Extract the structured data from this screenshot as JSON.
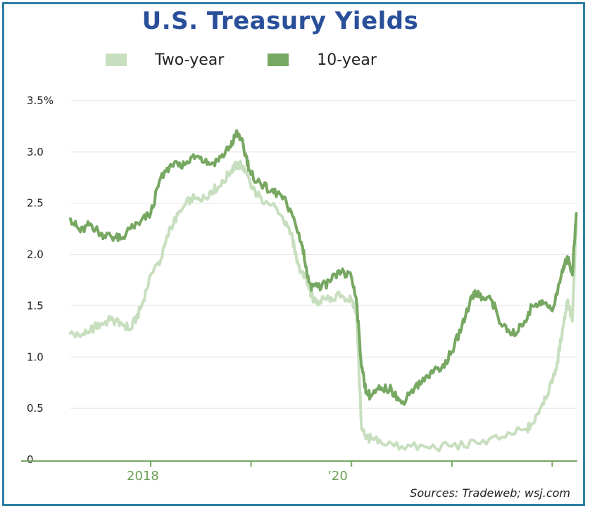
{
  "chart_data": {
    "type": "line",
    "title": "U.S. Treasury Yields",
    "source": "Sources: Tradeweb; wsj.com",
    "xlabel": "",
    "ylabel": "",
    "ylim": [
      0,
      3.5
    ],
    "y_ticks": [
      {
        "value": 0,
        "label": "0"
      },
      {
        "value": 0.5,
        "label": "0.5"
      },
      {
        "value": 1.0,
        "label": "1.0"
      },
      {
        "value": 1.5,
        "label": "1.5"
      },
      {
        "value": 2.0,
        "label": "2.0"
      },
      {
        "value": 2.5,
        "label": "2.5"
      },
      {
        "value": 3.0,
        "label": "3.0"
      },
      {
        "value": 3.5,
        "label": "3.5%"
      }
    ],
    "xlim": [
      2017.2,
      2022.25
    ],
    "x_ticks": [
      {
        "value": 2018.0,
        "label": ""
      },
      {
        "value": 2019.0,
        "label": ""
      },
      {
        "value": 2020.0,
        "label": ""
      },
      {
        "value": 2021.0,
        "label": ""
      },
      {
        "value": 2022.0,
        "label": ""
      }
    ],
    "x_tick_labels": [
      {
        "value": 2018.0,
        "label": "2018"
      },
      {
        "value": 2020.0,
        "label": "’20"
      }
    ],
    "grid": "horizontal",
    "legend": "top",
    "series": [
      {
        "name": "Two-year",
        "color": "#c8dfbf",
        "x": [
          2017.2,
          2017.3,
          2017.4,
          2017.5,
          2017.6,
          2017.7,
          2017.8,
          2017.9,
          2018.0,
          2018.1,
          2018.2,
          2018.3,
          2018.4,
          2018.5,
          2018.6,
          2018.7,
          2018.8,
          2018.85,
          2018.9,
          2018.95,
          2019.0,
          2019.1,
          2019.2,
          2019.3,
          2019.4,
          2019.45,
          2019.5,
          2019.55,
          2019.6,
          2019.65,
          2019.7,
          2019.8,
          2019.9,
          2020.0,
          2020.05,
          2020.1,
          2020.15,
          2020.2,
          2020.3,
          2020.5,
          2020.75,
          2021.0,
          2021.25,
          2021.5,
          2021.75,
          2021.8,
          2021.9,
          2022.0,
          2022.05,
          2022.1,
          2022.15,
          2022.2,
          2022.24
        ],
        "values": [
          1.23,
          1.2,
          1.27,
          1.32,
          1.36,
          1.34,
          1.27,
          1.47,
          1.8,
          1.95,
          2.27,
          2.42,
          2.55,
          2.52,
          2.62,
          2.67,
          2.82,
          2.87,
          2.87,
          2.8,
          2.65,
          2.55,
          2.48,
          2.38,
          2.2,
          1.98,
          1.83,
          1.78,
          1.6,
          1.52,
          1.55,
          1.58,
          1.6,
          1.55,
          1.45,
          0.3,
          0.22,
          0.2,
          0.16,
          0.13,
          0.12,
          0.13,
          0.16,
          0.22,
          0.3,
          0.35,
          0.55,
          0.75,
          0.95,
          1.25,
          1.55,
          1.35,
          2.3
        ]
      },
      {
        "name": "10-year",
        "color": "#77a862",
        "x": [
          2017.2,
          2017.3,
          2017.4,
          2017.5,
          2017.6,
          2017.7,
          2017.8,
          2017.9,
          2018.0,
          2018.1,
          2018.2,
          2018.3,
          2018.4,
          2018.5,
          2018.6,
          2018.7,
          2018.8,
          2018.85,
          2018.9,
          2018.95,
          2019.0,
          2019.1,
          2019.2,
          2019.3,
          2019.4,
          2019.5,
          2019.55,
          2019.6,
          2019.65,
          2019.7,
          2019.8,
          2019.9,
          2020.0,
          2020.05,
          2020.1,
          2020.15,
          2020.2,
          2020.3,
          2020.4,
          2020.5,
          2020.6,
          2020.7,
          2020.8,
          2020.9,
          2021.0,
          2021.1,
          2021.2,
          2021.25,
          2021.3,
          2021.4,
          2021.5,
          2021.6,
          2021.7,
          2021.8,
          2021.9,
          2022.0,
          2022.1,
          2022.15,
          2022.2,
          2022.24
        ],
        "values": [
          2.35,
          2.22,
          2.3,
          2.2,
          2.18,
          2.15,
          2.25,
          2.32,
          2.4,
          2.75,
          2.88,
          2.85,
          2.95,
          2.95,
          2.88,
          2.95,
          3.05,
          3.18,
          3.12,
          2.95,
          2.78,
          2.68,
          2.62,
          2.58,
          2.42,
          2.12,
          1.88,
          1.65,
          1.72,
          1.68,
          1.75,
          1.83,
          1.78,
          1.55,
          0.9,
          0.65,
          0.62,
          0.7,
          0.68,
          0.55,
          0.68,
          0.75,
          0.87,
          0.9,
          1.05,
          1.3,
          1.6,
          1.62,
          1.58,
          1.55,
          1.3,
          1.22,
          1.3,
          1.5,
          1.55,
          1.45,
          1.85,
          1.98,
          1.8,
          2.4
        ]
      }
    ]
  }
}
